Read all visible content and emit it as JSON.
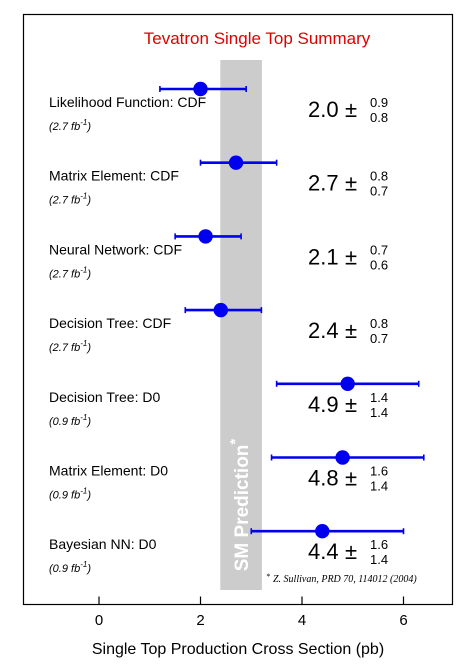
{
  "chart_data": {
    "type": "scatter",
    "title": "Tevatron Single Top Summary",
    "title_color": "#e00000",
    "xlabel": "Single Top Production Cross Section (pb)",
    "xlim": [
      -1.5,
      7
    ],
    "xticks": [
      0,
      2,
      4,
      6
    ],
    "marker_color": "#0000ee",
    "band": {
      "label": "SM Prediction",
      "marker": "*",
      "x_range": [
        2.4,
        3.2
      ],
      "color": "#cccccc"
    },
    "footnote": {
      "marker": "*",
      "text": "Z. Sullivan, PRD 70, 114012 (2004)"
    },
    "measurements": [
      {
        "label": "Likelihood Function: CDF",
        "lumi": "(2.7 fb",
        "lumi_exp": "-1",
        "lumi_close": ")",
        "value": 2.0,
        "value_text": "2.0",
        "err_plus": 0.9,
        "err_plus_text": "0.9",
        "err_minus": 0.8,
        "err_minus_text": "0.8"
      },
      {
        "label": "Matrix Element: CDF",
        "lumi": "(2.7 fb",
        "lumi_exp": "-1",
        "lumi_close": ")",
        "value": 2.7,
        "value_text": "2.7",
        "err_plus": 0.8,
        "err_plus_text": "0.8",
        "err_minus": 0.7,
        "err_minus_text": "0.7"
      },
      {
        "label": "Neural Network: CDF",
        "lumi": "(2.7 fb",
        "lumi_exp": "-1",
        "lumi_close": ")",
        "value": 2.1,
        "value_text": "2.1",
        "err_plus": 0.7,
        "err_plus_text": "0.7",
        "err_minus": 0.6,
        "err_minus_text": "0.6"
      },
      {
        "label": "Decision Tree: CDF",
        "lumi": "(2.7 fb",
        "lumi_exp": "-1",
        "lumi_close": ")",
        "value": 2.4,
        "value_text": "2.4",
        "err_plus": 0.8,
        "err_plus_text": "0.8",
        "err_minus": 0.7,
        "err_minus_text": "0.7"
      },
      {
        "label": "Decision Tree: D0",
        "lumi": "(0.9 fb",
        "lumi_exp": "-1",
        "lumi_close": ")",
        "value": 4.9,
        "value_text": "4.9",
        "err_plus": 1.4,
        "err_plus_text": "1.4",
        "err_minus": 1.4,
        "err_minus_text": "1.4"
      },
      {
        "label": "Matrix Element: D0",
        "lumi": "(0.9 fb",
        "lumi_exp": "-1",
        "lumi_close": ")",
        "value": 4.8,
        "value_text": "4.8",
        "err_plus": 1.6,
        "err_plus_text": "1.6",
        "err_minus": 1.4,
        "err_minus_text": "1.4"
      },
      {
        "label": "Bayesian NN: D0",
        "lumi": "(0.9 fb",
        "lumi_exp": "-1",
        "lumi_close": ")",
        "value": 4.4,
        "value_text": "4.4",
        "err_plus": 1.6,
        "err_plus_text": "1.6",
        "err_minus": 1.4,
        "err_minus_text": "1.4"
      }
    ],
    "pm_symbol": "±",
    "grid": false
  }
}
